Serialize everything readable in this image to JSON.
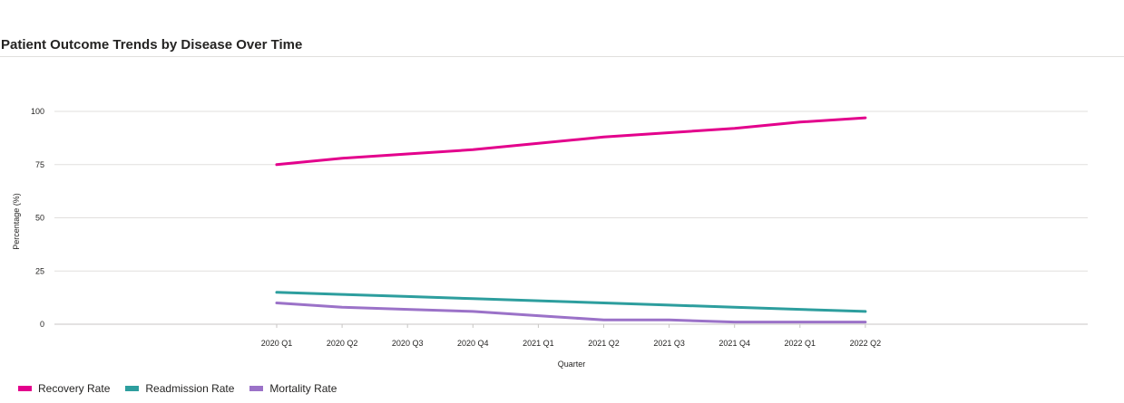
{
  "chart_data": {
    "type": "line",
    "title": "Patient Outcome Trends by Disease Over Time",
    "xlabel": "Quarter",
    "ylabel": "Percentage (%)",
    "ylim": [
      0,
      100
    ],
    "yticks": [
      "0",
      "25",
      "50",
      "75",
      "100"
    ],
    "grid": true,
    "legend_position": "bottom-left",
    "categories": [
      "2020 Q1",
      "2020 Q2",
      "2020 Q3",
      "2020 Q4",
      "2021 Q1",
      "2021 Q2",
      "2021 Q3",
      "2021 Q4",
      "2022 Q1",
      "2022 Q2"
    ],
    "series": [
      {
        "name": "Recovery Rate",
        "color": "#e3008c",
        "values": [
          75,
          78,
          80,
          82,
          85,
          88,
          90,
          92,
          95,
          97
        ]
      },
      {
        "name": "Readmission Rate",
        "color": "#2d9e9e",
        "values": [
          15,
          14,
          13,
          12,
          11,
          10,
          9,
          8,
          7,
          6
        ]
      },
      {
        "name": "Mortality Rate",
        "color": "#9b72c8",
        "values": [
          10,
          8,
          7,
          6,
          4,
          2,
          2,
          1,
          1,
          1
        ]
      }
    ]
  }
}
